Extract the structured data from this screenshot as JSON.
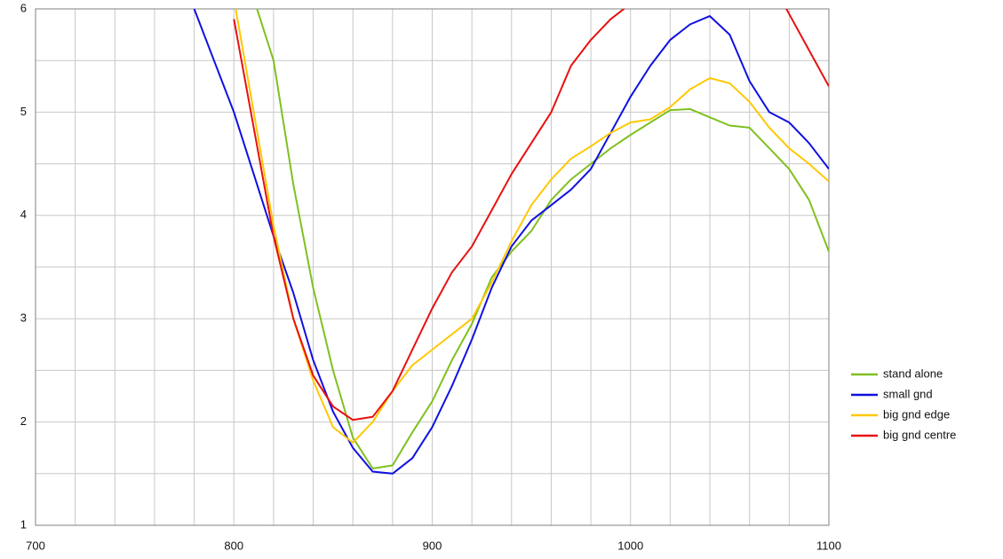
{
  "chart_data": {
    "type": "line",
    "x": [
      780,
      790,
      800,
      810,
      820,
      830,
      840,
      850,
      860,
      870,
      880,
      890,
      900,
      910,
      920,
      930,
      940,
      950,
      960,
      970,
      980,
      990,
      1000,
      1010,
      1020,
      1030,
      1040,
      1050,
      1060,
      1070,
      1080,
      1090,
      1100
    ],
    "series": [
      {
        "name": "stand alone",
        "color": "#80c020",
        "values": [
          null,
          null,
          null,
          6.1,
          5.5,
          4.3,
          3.3,
          2.5,
          1.85,
          1.55,
          1.58,
          1.9,
          2.2,
          2.6,
          2.95,
          3.4,
          3.65,
          3.85,
          4.15,
          4.35,
          4.5,
          4.65,
          4.78,
          4.9,
          5.02,
          5.03,
          4.95,
          4.87,
          4.85,
          4.65,
          4.45,
          4.15,
          3.65
        ]
      },
      {
        "name": "small gnd",
        "color": "#1010e0",
        "values": [
          6.0,
          5.5,
          5.0,
          4.4,
          3.8,
          3.25,
          2.6,
          2.1,
          1.75,
          1.52,
          1.5,
          1.65,
          1.95,
          2.35,
          2.8,
          3.3,
          3.7,
          3.95,
          4.1,
          4.25,
          4.45,
          4.8,
          5.15,
          5.45,
          5.7,
          5.85,
          5.93,
          5.75,
          5.3,
          5.0,
          4.9,
          4.7,
          4.45
        ]
      },
      {
        "name": "big gnd edge",
        "color": "#ffc800",
        "values": [
          null,
          null,
          6.1,
          5.0,
          3.9,
          3.0,
          2.4,
          1.95,
          1.8,
          2.0,
          2.3,
          2.55,
          2.7,
          2.85,
          3.0,
          3.35,
          3.75,
          4.1,
          4.35,
          4.55,
          4.67,
          4.8,
          4.9,
          4.93,
          5.05,
          5.22,
          5.33,
          5.28,
          5.1,
          4.85,
          4.65,
          4.5,
          4.33
        ]
      },
      {
        "name": "big gnd centre",
        "color": "#e81010",
        "values": [
          null,
          null,
          5.9,
          4.85,
          3.8,
          3.0,
          2.45,
          2.15,
          2.02,
          2.05,
          2.3,
          2.7,
          3.1,
          3.45,
          3.7,
          4.05,
          4.4,
          4.7,
          5.0,
          5.45,
          5.7,
          5.9,
          6.05,
          6.2,
          null,
          null,
          null,
          null,
          null,
          6.3,
          5.95,
          5.6,
          5.25
        ]
      }
    ],
    "xlim": [
      700,
      1100
    ],
    "xticks": [
      700,
      800,
      900,
      1000,
      1100
    ],
    "ylim": [
      1,
      6
    ],
    "yticks": [
      1,
      2,
      3,
      4,
      5,
      6
    ],
    "grid": true,
    "x_grid_subdivisions": 5,
    "y_grid_subdivisions": 2,
    "legend": "right"
  }
}
